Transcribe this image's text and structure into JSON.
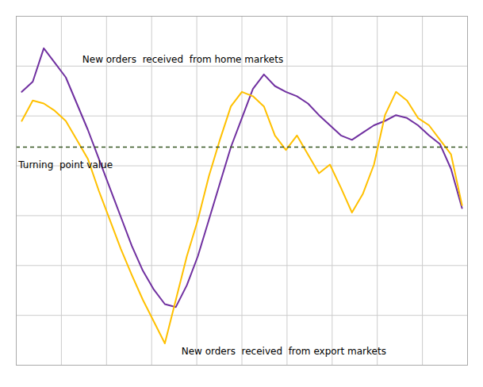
{
  "chart_data": {
    "type": "line",
    "x": [
      0,
      1,
      2,
      3,
      4,
      5,
      6,
      7,
      8,
      9,
      10,
      11,
      12,
      13,
      14,
      15,
      16,
      17,
      18,
      19,
      20,
      21,
      22,
      23,
      24,
      25,
      26,
      27,
      28,
      29,
      30,
      31,
      32,
      33,
      34,
      35,
      36,
      37,
      38,
      39,
      40
    ],
    "series": [
      {
        "color": "#7030A0",
        "values": [
          3.8,
          4.5,
          6.8,
          5.8,
          4.8,
          3.0,
          1.2,
          -0.8,
          -2.8,
          -4.8,
          -6.8,
          -8.5,
          -9.8,
          -10.8,
          -11.0,
          -9.5,
          -7.5,
          -5.0,
          -2.5,
          0.0,
          2.0,
          4.0,
          5.0,
          4.2,
          3.8,
          3.5,
          3.0,
          2.2,
          1.5,
          0.8,
          0.5,
          1.0,
          1.5,
          1.8,
          2.2,
          2.0,
          1.5,
          0.8,
          0.2,
          -1.5,
          -4.2
        ]
      },
      {
        "color": "#FFC000",
        "values": [
          1.8,
          3.2,
          3.0,
          2.5,
          1.8,
          0.5,
          -0.8,
          -3.0,
          -5.0,
          -7.0,
          -8.8,
          -10.5,
          -12.0,
          -13.5,
          -10.5,
          -7.5,
          -5.0,
          -2.0,
          0.5,
          2.8,
          3.8,
          3.5,
          2.8,
          0.8,
          -0.2,
          0.8,
          -0.5,
          -1.8,
          -1.2,
          -2.8,
          -4.5,
          -3.2,
          -1.2,
          2.2,
          3.8,
          3.2,
          2.0,
          1.5,
          0.5,
          -0.5,
          -4.0
        ]
      }
    ],
    "hline": {
      "value": 0.0,
      "color": "#375623",
      "line_style": "dashed"
    },
    "annotations": [
      {
        "text": "New orders  received  from home markets",
        "x": 5.5,
        "y": 5.8
      },
      {
        "text": "New orders  received  from export markets",
        "x": 14.5,
        "y": -13.8
      },
      {
        "text": "Turning  point value",
        "x": -0.3,
        "y": -1.0
      }
    ],
    "xlim": [
      -0.5,
      40.5
    ],
    "ylim": [
      -15,
      9
    ],
    "xticks": [
      -0.5,
      3.6,
      7.7,
      11.8,
      15.9,
      20.0,
      24.1,
      28.2,
      32.3,
      36.4,
      40.5
    ],
    "yticks": [
      -15,
      -11.571428571428571,
      -8.142857142857142,
      -4.714285714285714,
      -1.2857142857142856,
      2.142857142857143,
      5.571428571428571,
      9
    ],
    "grid": true,
    "tick_labels": false
  }
}
